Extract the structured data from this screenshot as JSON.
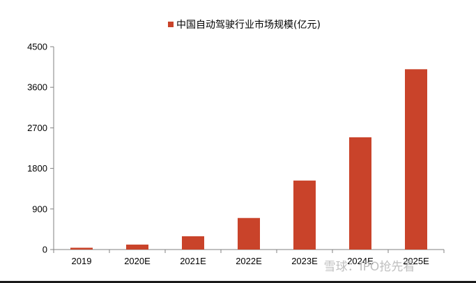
{
  "chart_data": {
    "type": "bar",
    "title": "",
    "xlabel": "",
    "ylabel": "",
    "categories": [
      "2019",
      "2020E",
      "2021E",
      "2022E",
      "2023E",
      "2024E",
      "2025E"
    ],
    "series": [
      {
        "name": "中国自动驾驶行业市场规模(亿元)",
        "values": [
          40,
          110,
          295,
          700,
          1530,
          2490,
          4000
        ],
        "color": "#c9432a"
      }
    ],
    "ylim": [
      0,
      4500
    ],
    "yticks": [
      "0",
      "900",
      "1800",
      "2700",
      "3600",
      "4500"
    ],
    "grid": false,
    "legend_position": "top"
  },
  "watermark": "雪球：IPO抢先看"
}
